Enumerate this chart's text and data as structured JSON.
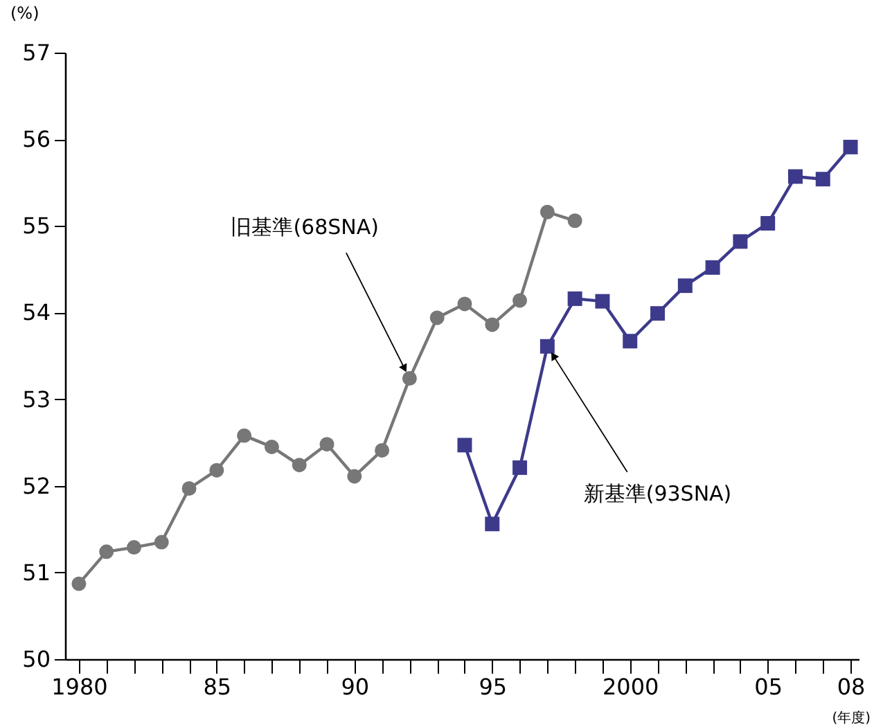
{
  "chart_data": {
    "type": "line",
    "ylabel": "(%)",
    "xlabel": "(年度)",
    "xlim": [
      1979.5,
      2008.3
    ],
    "xticks": [
      1980,
      {
        "value": 1981,
        "label": null
      },
      {
        "value": 1982,
        "label": null
      },
      {
        "value": 1983,
        "label": null
      },
      {
        "value": 1984,
        "label": null
      },
      {
        "value": 1985,
        "label": "85"
      },
      {
        "value": 1986,
        "label": null
      },
      {
        "value": 1987,
        "label": null
      },
      {
        "value": 1988,
        "label": null
      },
      {
        "value": 1989,
        "label": null
      },
      {
        "value": 1990,
        "label": "90"
      },
      {
        "value": 1991,
        "label": null
      },
      {
        "value": 1992,
        "label": null
      },
      {
        "value": 1993,
        "label": null
      },
      {
        "value": 1994,
        "label": null
      },
      {
        "value": 1995,
        "label": "95"
      },
      {
        "value": 1996,
        "label": null
      },
      {
        "value": 1997,
        "label": null
      },
      {
        "value": 1998,
        "label": null
      },
      {
        "value": 1999,
        "label": null
      },
      2000,
      {
        "value": 2001,
        "label": null
      },
      {
        "value": 2002,
        "label": null
      },
      {
        "value": 2003,
        "label": null
      },
      {
        "value": 2004,
        "label": null
      },
      {
        "value": 2005,
        "label": "05"
      },
      {
        "value": 2006,
        "label": null
      },
      {
        "value": 2007,
        "label": null
      },
      {
        "value": 2008,
        "label": "08"
      }
    ],
    "ylim": [
      50,
      57
    ],
    "yticks": [
      50,
      51,
      52,
      53,
      54,
      55,
      56,
      57
    ],
    "grid": false,
    "series": [
      {
        "color": "#777777",
        "marker": "circle",
        "x": [
          1980,
          1981,
          1982,
          1983,
          1984,
          1985,
          1986,
          1987,
          1988,
          1989,
          1990,
          1991,
          1992,
          1993,
          1994,
          1995,
          1996,
          1997,
          1998
        ],
        "values": [
          50.87,
          51.24,
          51.29,
          51.35,
          51.97,
          52.18,
          52.58,
          52.45,
          52.24,
          52.48,
          52.11,
          52.41,
          53.24,
          53.94,
          54.1,
          53.86,
          54.14,
          55.16,
          55.06
        ]
      },
      {
        "color": "#3d3a8c",
        "marker": "square",
        "x": [
          1994,
          1995,
          1996,
          1997,
          1998,
          1999,
          2000,
          2001,
          2002,
          2003,
          2004,
          2005,
          2006,
          2007,
          2008
        ],
        "values": [
          52.47,
          51.56,
          52.21,
          53.61,
          54.16,
          54.13,
          53.67,
          53.99,
          54.31,
          54.52,
          54.82,
          55.03,
          55.57,
          55.54,
          55.91
        ]
      }
    ],
    "annotations": [
      {
        "text": "旧基準(68SNA)",
        "x": 1992,
        "y": 53.24
      },
      {
        "text": "新基準(93SNA)",
        "x": 1997,
        "y": 53.61
      }
    ]
  }
}
